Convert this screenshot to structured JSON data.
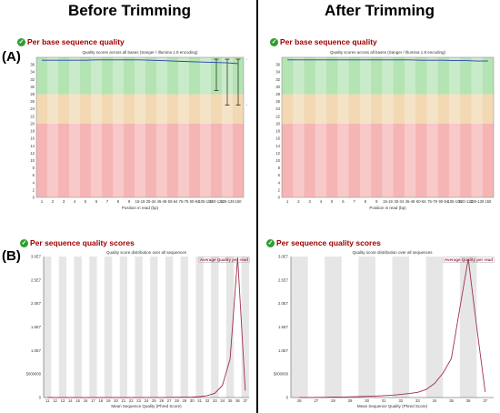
{
  "titles": {
    "before": "Before Trimming",
    "after": "After Trimming"
  },
  "labels": {
    "a": "(A)",
    "b": "(B)"
  },
  "sections": {
    "per_base": "Per base sequence quality",
    "per_sequence": "Per sequence quality scores"
  },
  "chart_data": [
    {
      "id": "before-per-base",
      "type": "line",
      "title": "Quality scores across all bases (Sanger / Illumina 1.9 encoding)",
      "xlabel": "Position in read (bp)",
      "ylabel": "",
      "ylim": [
        0,
        38
      ],
      "yticks": [
        0,
        2,
        4,
        6,
        8,
        10,
        12,
        14,
        16,
        18,
        20,
        22,
        24,
        26,
        28,
        30,
        32,
        34,
        36
      ],
      "categories": [
        "1",
        "2",
        "3",
        "4",
        "5",
        "6",
        "7",
        "8",
        "9",
        "15-19",
        "30-34",
        "45-49",
        "60-64",
        "75-79",
        "90-94",
        "105-109",
        "120-124",
        "135-139",
        "150"
      ],
      "zones": {
        "red": [
          0,
          20
        ],
        "orange": [
          20,
          28
        ],
        "green": [
          28,
          38
        ]
      },
      "colors": {
        "red": "#f5b5b5",
        "orange": "#f2d9b3",
        "green": "#b4e3b4",
        "mean_line": "#2b3fb0",
        "whisker": "#000000"
      },
      "mean": [
        37.2,
        37.2,
        37.2,
        37.2,
        37.2,
        37.3,
        37.3,
        37.3,
        37.3,
        37.3,
        37.2,
        37.1,
        37.0,
        36.9,
        36.8,
        36.7,
        36.6,
        36.5,
        36.3
      ],
      "whiskers_from_index": 16,
      "whisker_lo": [
        29,
        25,
        25,
        25
      ],
      "whisker_hi": [
        37.5,
        37.5,
        37.5,
        37.5
      ]
    },
    {
      "id": "after-per-base",
      "type": "line",
      "title": "Quality scores across all bases (Sanger / Illumina 1.9 encoding)",
      "xlabel": "Position in read (bp)",
      "ylabel": "",
      "ylim": [
        0,
        38
      ],
      "yticks": [
        0,
        2,
        4,
        6,
        8,
        10,
        12,
        14,
        16,
        18,
        20,
        22,
        24,
        26,
        28,
        30,
        32,
        34,
        36
      ],
      "categories": [
        "1",
        "2",
        "3",
        "4",
        "5",
        "6",
        "7",
        "8",
        "9",
        "15-19",
        "30-34",
        "45-49",
        "60-64",
        "75-79",
        "90-94",
        "105-109",
        "120-124",
        "135-139",
        "150"
      ],
      "zones": {
        "red": [
          0,
          20
        ],
        "orange": [
          20,
          28
        ],
        "green": [
          28,
          38
        ]
      },
      "colors": {
        "red": "#f5b5b5",
        "orange": "#f2d9b3",
        "green": "#b4e3b4",
        "mean_line": "#2b3fb0"
      },
      "mean": [
        37.3,
        37.3,
        37.3,
        37.3,
        37.3,
        37.3,
        37.3,
        37.3,
        37.3,
        37.3,
        37.3,
        37.3,
        37.2,
        37.2,
        37.2,
        37.1,
        37.1,
        37.0,
        37.0
      ]
    },
    {
      "id": "before-per-seq",
      "type": "line",
      "title": "Quality score distribution over all sequences",
      "xlabel": "Mean Sequence Quality (Phred Score)",
      "ylabel": "",
      "legend": "Average Quality per read",
      "ylim": [
        0,
        30000000
      ],
      "yticks": [
        0,
        5000000,
        10000000,
        15000000,
        20000000,
        25000000,
        30000000
      ],
      "ytick_labels": [
        "0",
        "5000000",
        "1.0E7",
        "1.5E7",
        "2.0E7",
        "2.5E7",
        "3.0E7"
      ],
      "x": [
        11,
        12,
        13,
        14,
        15,
        16,
        17,
        18,
        19,
        20,
        21,
        22,
        23,
        24,
        25,
        26,
        27,
        28,
        29,
        30,
        31,
        32,
        33,
        34,
        35,
        36,
        37
      ],
      "xticks": [
        11,
        12,
        13,
        14,
        15,
        16,
        17,
        18,
        19,
        20,
        21,
        22,
        23,
        24,
        25,
        26,
        27,
        28,
        29,
        30,
        31,
        32,
        33,
        34,
        35,
        36,
        37
      ],
      "y": [
        0,
        0,
        0,
        0,
        0,
        0,
        0,
        0,
        0,
        0,
        0,
        0,
        0,
        10000,
        15000,
        20000,
        30000,
        50000,
        80000,
        120000,
        200000,
        400000,
        900000,
        2600000,
        8200000,
        29800000,
        1500000
      ],
      "colors": {
        "line": "#a0304a",
        "band": "#e6e6e6"
      }
    },
    {
      "id": "after-per-seq",
      "type": "line",
      "title": "Quality score distribution over all sequences",
      "xlabel": "Mean Sequence Quality (Phred Score)",
      "ylabel": "",
      "legend": "Average Quality per read",
      "ylim": [
        0,
        30000000
      ],
      "yticks": [
        0,
        5000000,
        10000000,
        15000000,
        20000000,
        25000000,
        30000000
      ],
      "ytick_labels": [
        "0",
        "5000000",
        "1.0E7",
        "1.5E7",
        "2.0E7",
        "2.5E7",
        "3.0E7"
      ],
      "x": [
        26,
        26.5,
        27,
        27.5,
        28,
        28.5,
        29,
        29.5,
        30,
        30.5,
        31,
        31.5,
        32,
        32.5,
        33,
        33.5,
        34,
        34.5,
        35,
        35.5,
        36,
        36.5,
        37
      ],
      "xticks": [
        26,
        27,
        28,
        29,
        30,
        31,
        32,
        33,
        34,
        35,
        36,
        37
      ],
      "y": [
        0,
        20000,
        40000,
        60000,
        90000,
        110000,
        150000,
        190000,
        250000,
        310000,
        400000,
        500000,
        650000,
        850000,
        1100000,
        1700000,
        3000000,
        5200000,
        8300000,
        19000000,
        29500000,
        15000000,
        1200000
      ],
      "colors": {
        "line": "#a0304a",
        "band": "#e6e6e6"
      }
    }
  ]
}
